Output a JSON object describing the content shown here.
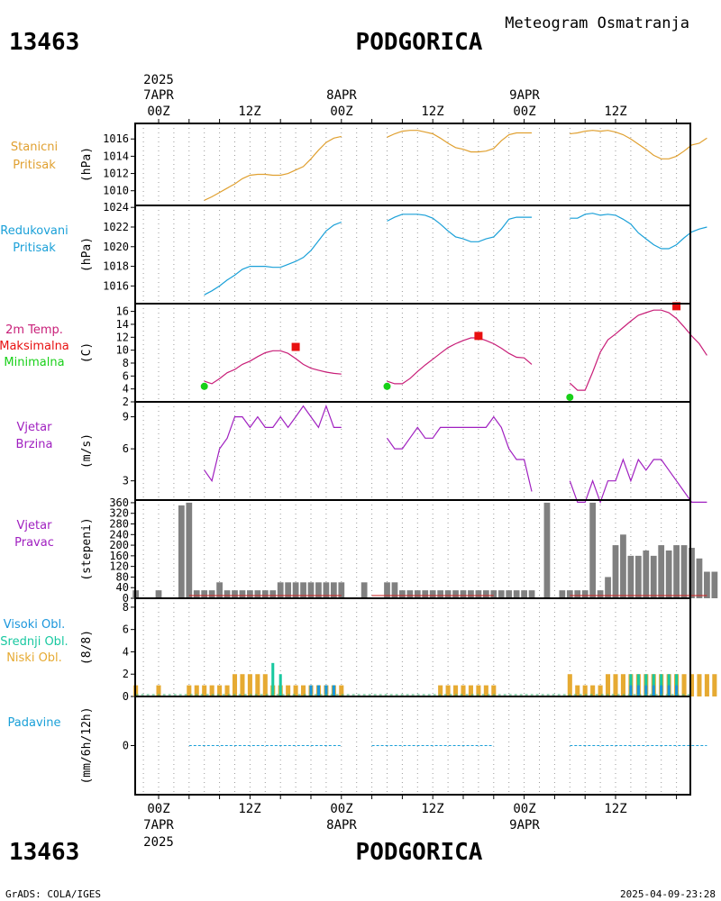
{
  "header": {
    "station_id": "13463",
    "station_name": "PODGORICA",
    "meteogram_title": "Meteogram Osmatranja"
  },
  "top_axis": {
    "year": "2025",
    "day_labels": [
      "7APR",
      "8APR",
      "9APR"
    ],
    "hour_labels": [
      "00Z",
      "12Z",
      "00Z",
      "12Z",
      "00Z",
      "12Z"
    ]
  },
  "bottom_axis": {
    "year": "2025",
    "day_labels": [
      "7APR",
      "8APR",
      "9APR"
    ],
    "hour_labels": [
      "00Z",
      "12Z",
      "00Z",
      "12Z",
      "00Z",
      "12Z"
    ]
  },
  "footer": {
    "left": "GrADS: COLA/IGES",
    "right": "2025-04-09-23:28"
  },
  "colors": {
    "pressure": "#e0a030",
    "reduced_pressure": "#1aa0d8",
    "temperature": "#c81e78",
    "max_temp": "#e81010",
    "min_temp": "#18d018",
    "wind": "#a020c0",
    "wind_bars": "#808080",
    "high_clouds": "#1a96dc",
    "mid_clouds": "#18c8a0",
    "low_clouds": "#e6aa32",
    "precip": "#1aa0d8"
  },
  "chart_data": [
    {
      "panel": "station_pressure",
      "type": "line",
      "labels": [
        "Stanicni",
        "Pritisak"
      ],
      "ylabel": "(hPa)",
      "yticks": [
        1010,
        1012,
        1014,
        1016
      ],
      "ylim": [
        1008.3,
        1017.8
      ],
      "segments": [
        {
          "x": [
            6,
            7,
            8,
            9,
            10,
            11,
            12,
            13,
            14,
            15,
            16,
            17,
            18,
            19,
            20,
            21,
            22,
            23,
            24
          ],
          "y": [
            1008.9,
            1009.3,
            1009.8,
            1010.3,
            1010.8,
            1011.4,
            1011.8,
            1011.9,
            1011.9,
            1011.8,
            1011.8,
            1012.0,
            1012.4,
            1012.8,
            1013.7,
            1014.7,
            1015.6,
            1016.1,
            1016.3
          ]
        },
        {
          "x": [
            30,
            31,
            32,
            33,
            34,
            35,
            36,
            37,
            38,
            39,
            40,
            41,
            42,
            43,
            44,
            45,
            46,
            47,
            48,
            49
          ],
          "y": [
            1016.2,
            1016.6,
            1016.9,
            1017.0,
            1017.0,
            1016.8,
            1016.6,
            1016.1,
            1015.5,
            1015.0,
            1014.8,
            1014.5,
            1014.5,
            1014.6,
            1014.9,
            1015.8,
            1016.5,
            1016.7,
            1016.7,
            1016.7
          ]
        },
        {
          "x": [
            54,
            55,
            56,
            57,
            58,
            59,
            60,
            61,
            62,
            63,
            64,
            65,
            66,
            67,
            68,
            69,
            70,
            71,
            72
          ],
          "y": [
            1016.6,
            1016.7,
            1016.9,
            1017.0,
            1016.9,
            1017.0,
            1016.8,
            1016.5,
            1016.0,
            1015.4,
            1014.8,
            1014.1,
            1013.7,
            1013.7,
            1014.0,
            1014.6,
            1015.3,
            1015.5,
            1016.1
          ]
        }
      ]
    },
    {
      "panel": "reduced_pressure",
      "type": "line",
      "labels": [
        "Redukovani",
        "Pritisak"
      ],
      "ylabel": "(hPa)",
      "yticks": [
        1016,
        1018,
        1020,
        1022,
        1024
      ],
      "ylim": [
        1014.2,
        1024.2
      ],
      "segments": [
        {
          "x": [
            6,
            7,
            8,
            9,
            10,
            11,
            12,
            13,
            14,
            15,
            16,
            17,
            18,
            19,
            20,
            21,
            22,
            23,
            24
          ],
          "y": [
            1015.1,
            1015.5,
            1016.0,
            1016.6,
            1017.1,
            1017.7,
            1018.0,
            1018.0,
            1018.0,
            1017.9,
            1017.9,
            1018.2,
            1018.5,
            1018.9,
            1019.6,
            1020.6,
            1021.6,
            1022.2,
            1022.5
          ]
        },
        {
          "x": [
            30,
            31,
            32,
            33,
            34,
            35,
            36,
            37,
            38,
            39,
            40,
            41,
            42,
            43,
            44,
            45,
            46,
            47,
            48,
            49
          ],
          "y": [
            1022.6,
            1023.0,
            1023.3,
            1023.3,
            1023.3,
            1023.2,
            1022.9,
            1022.3,
            1021.6,
            1021.0,
            1020.8,
            1020.5,
            1020.5,
            1020.8,
            1021.0,
            1021.8,
            1022.8,
            1023.0,
            1023.0,
            1023.0
          ]
        },
        {
          "x": [
            54,
            55,
            56,
            57,
            58,
            59,
            60,
            61,
            62,
            63,
            64,
            65,
            66,
            67,
            68,
            69,
            70,
            71,
            72
          ],
          "y": [
            1022.9,
            1022.9,
            1023.3,
            1023.4,
            1023.2,
            1023.3,
            1023.2,
            1022.8,
            1022.3,
            1021.4,
            1020.8,
            1020.2,
            1019.8,
            1019.8,
            1020.2,
            1020.9,
            1021.5,
            1021.8,
            1022.0
          ]
        }
      ]
    },
    {
      "panel": "temperature",
      "type": "line",
      "labels": [
        "2m Temp.",
        "Maksimalna",
        "Minimalna"
      ],
      "ylabel": "(C)",
      "yticks": [
        2,
        4,
        6,
        8,
        10,
        12,
        14,
        16
      ],
      "ylim": [
        2,
        17.2
      ],
      "segments": [
        {
          "x": [
            6,
            7,
            8,
            9,
            10,
            11,
            12,
            13,
            14,
            15,
            16,
            17,
            18,
            19,
            20,
            21,
            22,
            23,
            24
          ],
          "y": [
            5.2,
            4.8,
            5.6,
            6.5,
            7.0,
            7.8,
            8.3,
            9.0,
            9.6,
            9.9,
            9.9,
            9.5,
            8.7,
            7.8,
            7.2,
            6.9,
            6.6,
            6.4,
            6.3
          ]
        },
        {
          "x": [
            30,
            31,
            32,
            33,
            34,
            35,
            36,
            37,
            38,
            39,
            40,
            41,
            42,
            43,
            44,
            45,
            46,
            47,
            48,
            49
          ],
          "y": [
            5.2,
            4.8,
            4.8,
            5.6,
            6.7,
            7.7,
            8.6,
            9.5,
            10.4,
            11.0,
            11.5,
            11.9,
            11.9,
            11.5,
            11.0,
            10.3,
            9.5,
            8.9,
            8.8,
            7.8
          ]
        },
        {
          "x": [
            54,
            55,
            56,
            57,
            58,
            59,
            60,
            61,
            62,
            63,
            64,
            65,
            66,
            67,
            68,
            69,
            70,
            71,
            72
          ],
          "y": [
            4.9,
            3.8,
            3.8,
            6.6,
            9.7,
            11.6,
            12.5,
            13.5,
            14.5,
            15.4,
            15.8,
            16.2,
            16.2,
            15.8,
            14.9,
            13.6,
            12.2,
            11.0,
            9.2
          ]
        }
      ],
      "max_markers": [
        {
          "x": 18,
          "y": 10.5
        },
        {
          "x": 42,
          "y": 12.2
        },
        {
          "x": 68,
          "y": 16.8
        }
      ],
      "min_markers": [
        {
          "x": 6,
          "y": 4.4
        },
        {
          "x": 30,
          "y": 4.4
        },
        {
          "x": 54,
          "y": 2.7
        }
      ]
    },
    {
      "panel": "wind_speed",
      "type": "line",
      "labels": [
        "Vjetar",
        "Brzina"
      ],
      "ylabel": "(m/s)",
      "yticks": [
        3,
        6,
        9
      ],
      "ylim": [
        1.2,
        10.4
      ],
      "segments": [
        {
          "x": [
            6,
            7,
            8,
            9,
            10,
            11,
            12,
            13,
            14,
            15,
            16,
            17,
            18,
            19,
            20,
            21,
            22,
            23,
            24
          ],
          "y": [
            4,
            3,
            6,
            7,
            9,
            9,
            8,
            9,
            8,
            8,
            9,
            8,
            9,
            10,
            9,
            8,
            10,
            8,
            8
          ]
        },
        {
          "x": [
            30,
            31,
            32,
            33,
            34,
            35,
            36,
            37,
            38,
            39,
            40,
            41,
            42,
            43,
            44,
            45,
            46,
            47,
            48,
            49
          ],
          "y": [
            7,
            6,
            6,
            7,
            8,
            7,
            7,
            8,
            8,
            8,
            8,
            8,
            8,
            8,
            9,
            8,
            6,
            5,
            5,
            2
          ]
        },
        {
          "x": [
            54,
            55,
            56,
            57,
            58,
            59,
            60,
            61,
            62,
            63,
            64,
            65,
            66,
            67,
            68,
            69,
            70,
            71,
            72
          ],
          "y": [
            3,
            1,
            1,
            3,
            1,
            3,
            3,
            5,
            3,
            5,
            4,
            5,
            5,
            4,
            3,
            2,
            1,
            1,
            1
          ]
        }
      ]
    },
    {
      "panel": "wind_direction",
      "type": "bar",
      "labels": [
        "Vjetar",
        "Pravac"
      ],
      "ylabel": "(stepeni)",
      "yticks": [
        0,
        40,
        80,
        120,
        160,
        200,
        240,
        280,
        320,
        360
      ],
      "ylim": [
        0,
        370
      ],
      "x": [
        -3,
        0,
        3,
        4,
        5,
        6,
        7,
        8,
        9,
        10,
        11,
        12,
        13,
        14,
        15,
        16,
        17,
        18,
        19,
        20,
        21,
        22,
        23,
        24,
        27,
        30,
        31,
        32,
        33,
        34,
        35,
        36,
        37,
        38,
        39,
        40,
        41,
        42,
        43,
        44,
        45,
        46,
        47,
        48,
        49,
        51,
        53,
        54,
        55,
        56,
        57,
        58,
        59,
        60,
        61,
        62,
        63,
        64,
        65,
        66,
        67,
        68,
        69,
        70,
        71,
        72,
        73
      ],
      "values": [
        30,
        30,
        350,
        360,
        30,
        30,
        30,
        60,
        30,
        30,
        30,
        30,
        30,
        30,
        30,
        60,
        60,
        60,
        60,
        60,
        60,
        60,
        60,
        60,
        60,
        60,
        60,
        30,
        30,
        30,
        30,
        30,
        30,
        30,
        30,
        30,
        30,
        30,
        30,
        30,
        30,
        30,
        30,
        30,
        30,
        360,
        30,
        30,
        30,
        30,
        360,
        30,
        80,
        200,
        240,
        160,
        160,
        180,
        160,
        200,
        180,
        200,
        200,
        190,
        150,
        100,
        100
      ]
    },
    {
      "panel": "clouds",
      "type": "bar",
      "labels": [
        "Visoki Obl.",
        "Srednji Obl.",
        "Niski Obl."
      ],
      "ylabel": "(8/8)",
      "yticks": [
        0,
        2,
        4,
        6,
        8
      ],
      "ylim": [
        0,
        8.8
      ],
      "low": {
        "x": [
          -3,
          0,
          4,
          5,
          6,
          7,
          8,
          9,
          10,
          11,
          12,
          13,
          14,
          15,
          16,
          17,
          18,
          19,
          20,
          21,
          22,
          23,
          24,
          37,
          38,
          39,
          40,
          41,
          42,
          43,
          44,
          54,
          55,
          56,
          57,
          58,
          59,
          60,
          61,
          62,
          63,
          64,
          65,
          66,
          67,
          68,
          69,
          70,
          71,
          72,
          73
        ],
        "values": [
          1,
          1,
          1,
          1,
          1,
          1,
          1,
          1,
          2,
          2,
          2,
          2,
          2,
          1,
          1,
          1,
          1,
          1,
          1,
          1,
          1,
          1,
          1,
          1,
          1,
          1,
          1,
          1,
          1,
          1,
          1,
          2,
          1,
          1,
          1,
          1,
          2,
          2,
          2,
          2,
          2,
          2,
          2,
          2,
          2,
          2,
          2,
          2,
          2,
          2,
          2
        ]
      },
      "mid": {
        "x": [
          15,
          16,
          20,
          21,
          22,
          23,
          62,
          63,
          64,
          65,
          66,
          67,
          68
        ],
        "values": [
          3,
          2,
          1,
          1,
          1,
          1,
          2,
          2,
          2,
          2,
          2,
          2,
          2
        ]
      },
      "high": {
        "x": [
          20,
          21,
          22,
          23,
          62,
          63,
          64,
          65,
          66,
          67,
          68
        ],
        "values": [
          1,
          1,
          1,
          1,
          1,
          1,
          1,
          1,
          1,
          1,
          1
        ]
      }
    },
    {
      "panel": "precipitation",
      "type": "line",
      "labels": [
        "Padavine"
      ],
      "ylabel": "(mm/6h/12h)",
      "yticks": [
        0
      ],
      "ylim": [
        -5,
        5
      ],
      "segments": [
        {
          "x": [
            4,
            24
          ],
          "y": [
            0,
            0
          ]
        },
        {
          "x": [
            28,
            44
          ],
          "y": [
            0,
            0
          ]
        },
        {
          "x": [
            54,
            72
          ],
          "y": [
            0,
            0
          ]
        }
      ]
    }
  ]
}
